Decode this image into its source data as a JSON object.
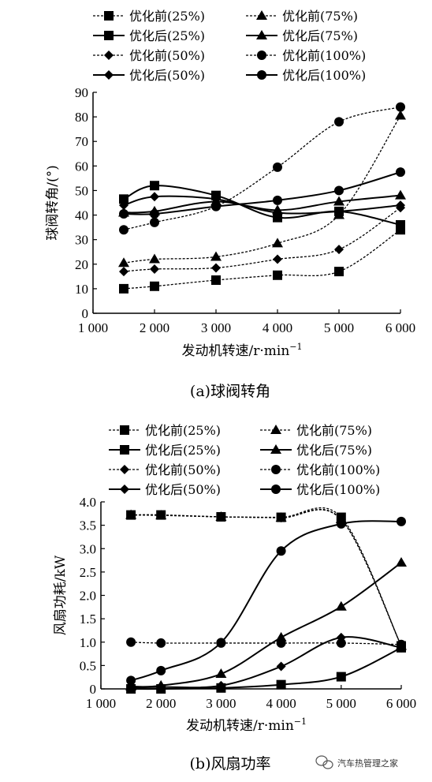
{
  "chart_data": [
    {
      "type": "line",
      "caption": "(a)球阀转角",
      "xlabel": "发动机转速/r·min",
      "xlabel_sup": "−1",
      "ylabel": "球阀转角/(°)",
      "xlim": [
        1000,
        6000
      ],
      "ylim": [
        0,
        90
      ],
      "xticks": [
        1000,
        2000,
        3000,
        4000,
        5000,
        6000
      ],
      "xtick_labels": [
        "1 000",
        "2 000",
        "3 000",
        "4 000",
        "5 000",
        "6 000"
      ],
      "yticks": [
        0,
        10,
        20,
        30,
        40,
        50,
        60,
        70,
        80,
        90
      ],
      "ytick_labels": [
        "0",
        "10",
        "20",
        "30",
        "40",
        "50",
        "60",
        "70",
        "80",
        "90"
      ],
      "x": [
        1500,
        2000,
        3000,
        4000,
        5000,
        6000
      ],
      "series": [
        {
          "name": "优化前(25%)",
          "marker": "square",
          "dash": true,
          "values": [
            10,
            11,
            13.5,
            15.5,
            17,
            34
          ]
        },
        {
          "name": "优化后(25%)",
          "marker": "square",
          "dash": false,
          "values": [
            46.5,
            52,
            48,
            39,
            41.5,
            36
          ]
        },
        {
          "name": "优化前(50%)",
          "marker": "diamond",
          "dash": true,
          "values": [
            17,
            18,
            18.5,
            22,
            26,
            43
          ]
        },
        {
          "name": "优化后(50%)",
          "marker": "diamond",
          "dash": false,
          "values": [
            44,
            47.5,
            46.5,
            41,
            41.5,
            44
          ]
        },
        {
          "name": "优化前(75%)",
          "marker": "triangle",
          "dash": true,
          "values": [
            20.5,
            22,
            23,
            28.5,
            40,
            80.5
          ]
        },
        {
          "name": "优化后(75%)",
          "marker": "triangle",
          "dash": false,
          "values": [
            41,
            41.5,
            45.5,
            42,
            45.5,
            48
          ]
        },
        {
          "name": "优化前(100%)",
          "marker": "circle",
          "dash": true,
          "values": [
            34,
            37,
            43.5,
            59.5,
            78,
            84
          ]
        },
        {
          "name": "优化后(100%)",
          "marker": "circle",
          "dash": false,
          "values": [
            40.5,
            40.5,
            43.5,
            46,
            50,
            57.5
          ]
        }
      ],
      "legend_position": "top"
    },
    {
      "type": "line",
      "caption": "(b)风扇功率",
      "xlabel": "发动机转速/r·min",
      "xlabel_sup": "−1",
      "ylabel": "风扇功耗/kW",
      "xlim": [
        1000,
        6000
      ],
      "ylim": [
        0,
        4.0
      ],
      "xticks": [
        1000,
        2000,
        3000,
        4000,
        5000,
        6000
      ],
      "xtick_labels": [
        "1 000",
        "2 000",
        "3 000",
        "4 000",
        "5 000",
        "6 000"
      ],
      "yticks": [
        0,
        0.5,
        1.0,
        1.5,
        2.0,
        2.5,
        3.0,
        3.5,
        4.0
      ],
      "ytick_labels": [
        "0",
        "0.5",
        "1.0",
        "1.5",
        "2.0",
        "2.5",
        "3.0",
        "3.5",
        "4.0"
      ],
      "x": [
        1500,
        2000,
        3000,
        4000,
        5000,
        6000
      ],
      "series": [
        {
          "name": "优化前(25%)",
          "marker": "square",
          "dash": true,
          "values": [
            3.72,
            3.72,
            3.68,
            3.67,
            3.67,
            0.92
          ]
        },
        {
          "name": "优化后(25%)",
          "marker": "square",
          "dash": false,
          "values": [
            0.0,
            0.0,
            0.02,
            0.09,
            0.26,
            0.88
          ]
        },
        {
          "name": "优化前(50%)",
          "marker": "diamond",
          "dash": true,
          "values": [
            3.72,
            3.72,
            3.68,
            3.66,
            3.62,
            0.92
          ]
        },
        {
          "name": "优化后(50%)",
          "marker": "diamond",
          "dash": false,
          "values": [
            0.03,
            0.04,
            0.07,
            0.48,
            1.1,
            0.88
          ]
        },
        {
          "name": "优化前(75%)",
          "marker": "triangle",
          "dash": true,
          "values": [
            3.72,
            3.71,
            3.68,
            3.66,
            3.63,
            0.92
          ]
        },
        {
          "name": "优化后(75%)",
          "marker": "triangle",
          "dash": false,
          "values": [
            0.05,
            0.07,
            0.32,
            1.1,
            1.76,
            2.7
          ]
        },
        {
          "name": "优化前(100%)",
          "marker": "circle",
          "dash": true,
          "values": [
            1.0,
            0.98,
            0.98,
            0.98,
            0.98,
            0.95
          ]
        },
        {
          "name": "优化后(100%)",
          "marker": "circle",
          "dash": false,
          "values": [
            0.18,
            0.39,
            0.99,
            2.95,
            3.53,
            3.58
          ]
        }
      ],
      "legend_position": "top"
    }
  ],
  "watermark": "汽车热管理之家",
  "watermark_icon": "wechat-icon"
}
